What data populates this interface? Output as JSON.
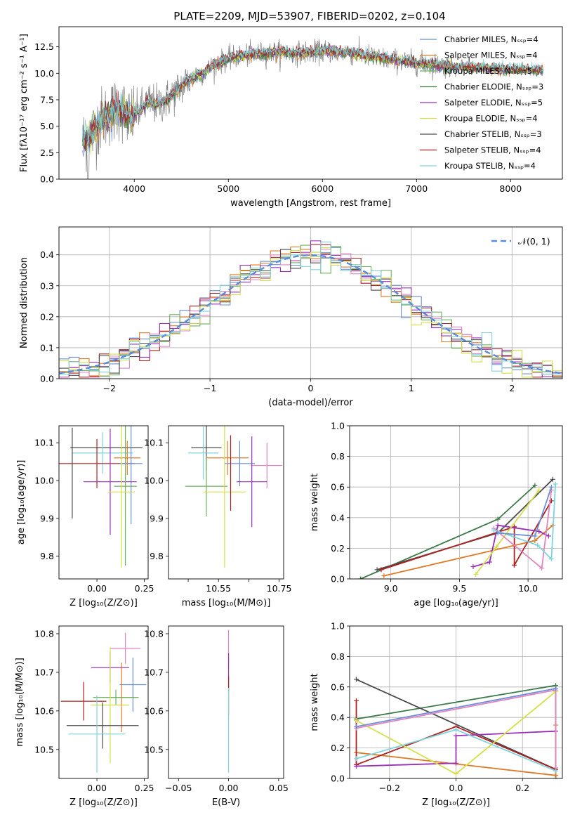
{
  "figure_title": "PLATE=2209, MJD=53907, FIBERID=0202, z=0.104",
  "colors": [
    "#6b8fd6",
    "#e07a28",
    "#6ab35a",
    "#a63d3d",
    "#9b30b8",
    "#e085c0",
    "#555555",
    "#d4e04a",
    "#7fd3dc",
    "#4b4b4b",
    "#2f8a3a",
    "#b02020"
  ],
  "chart_data": [
    {
      "id": "spectrum",
      "type": "line",
      "xlabel": "wavelength [Angstrom, rest frame]",
      "ylabel": "Flux [fλ10⁻¹⁷ erg cm⁻² s⁻¹ A⁻¹]",
      "xlim": [
        3200,
        8550
      ],
      "ylim": [
        0,
        14.4
      ],
      "xticks": [
        4000,
        5000,
        6000,
        7000,
        8000
      ],
      "yticks": [
        0.0,
        2.5,
        5.0,
        7.5,
        10.0,
        12.5
      ],
      "grid": false,
      "legend_position": "upper-right",
      "series": [
        {
          "name": "Chabrier MILES, Nₛₛₚ=4",
          "color": "#6b8fd6"
        },
        {
          "name": "Salpeter MILES, Nₛₛₚ=4",
          "color": "#e07a28"
        },
        {
          "name": "Kroupa MILES, Nₛₛₚ=5",
          "color": "#6ab35a"
        },
        {
          "name": "Chabrier ELODIE, Nₛₛₚ=3",
          "color": "#3c7a4a"
        },
        {
          "name": "Salpeter ELODIE, Nₛₛₚ=5",
          "color": "#9b30b8"
        },
        {
          "name": "Kroupa ELODIE, Nₛₛₚ=4",
          "color": "#d4e04a"
        },
        {
          "name": "Chabrier STELIB, Nₛₛₚ=3",
          "color": "#4b4b4b"
        },
        {
          "name": "Salpeter STELIB, Nₛₛₚ=4",
          "color": "#b02020"
        },
        {
          "name": "Kroupa STELIB, Nₛₛₚ=4",
          "color": "#7fd3dc"
        }
      ],
      "envelope": {
        "x": [
          3450,
          3550,
          3650,
          3750,
          3850,
          3950,
          4050,
          4150,
          4250,
          4350,
          4450,
          4550,
          4650,
          4750,
          4850,
          4950,
          5100,
          5300,
          5500,
          5700,
          5900,
          6100,
          6300,
          6500,
          6700,
          6900,
          7100,
          7300,
          7400
        ],
        "y": [
          3.6,
          4.3,
          5.6,
          6.3,
          6.8,
          5.8,
          6.4,
          7.3,
          7.0,
          7.5,
          8.3,
          9.2,
          9.7,
          10.1,
          10.8,
          11.2,
          11.6,
          11.8,
          12.0,
          11.9,
          12.0,
          12.1,
          11.9,
          11.6,
          11.3,
          11.1,
          10.9,
          10.7,
          10.6
        ]
      },
      "observed_x_range": [
        3450,
        7420
      ],
      "model_x_range": [
        3450,
        8350
      ]
    },
    {
      "id": "residual-histogram",
      "type": "histogram",
      "xlabel": "(data-model)/error",
      "ylabel": "Normed distribution",
      "xlim": [
        -2.5,
        2.5
      ],
      "ylim": [
        0,
        0.49
      ],
      "xticks": [
        -2,
        -1,
        0,
        1,
        2
      ],
      "yticks": [
        0.0,
        0.1,
        0.2,
        0.3,
        0.4
      ],
      "grid": true,
      "legend_position": "upper-right",
      "reference_curve": {
        "name": "𝒩(0, 1)",
        "style": "dashed",
        "color": "#5a8ad8"
      },
      "bin_width": 0.1
    },
    {
      "id": "age-vs-Z",
      "type": "errorbar",
      "xlabel": "Z [log₁₀(Z/Z⊙)]",
      "ylabel": "age [log₁₀(age/yr)]",
      "xlim": [
        -0.2,
        0.27
      ],
      "ylim": [
        9.74,
        10.145
      ],
      "xticks": [
        0.0,
        0.25
      ],
      "yticks": [
        9.8,
        9.9,
        10.0,
        10.1
      ],
      "points": [
        {
          "x": 0.05,
          "y": 10.087,
          "xerr": 0.19,
          "yerr": 0.0,
          "color": "#4b4b4b"
        },
        {
          "x": 0.03,
          "y": 10.073,
          "xerr": 0.16,
          "yerr": 0.055,
          "color": "#7fd3dc"
        },
        {
          "x": 0.16,
          "y": 10.06,
          "xerr": 0.07,
          "yerr": 0.045,
          "color": "#e07a28"
        },
        {
          "x": 0.0,
          "y": 10.045,
          "xerr": 0.2,
          "yerr": 0.065,
          "color": "#b02020"
        },
        {
          "x": 0.18,
          "y": 10.045,
          "xerr": 0.06,
          "yerr": 0.16,
          "color": "#6b8fd6"
        },
        {
          "x": 0.07,
          "y": 9.997,
          "xerr": 0.14,
          "yerr": 0.14,
          "color": "#9b30b8"
        },
        {
          "x": 0.15,
          "y": 9.985,
          "xerr": 0.06,
          "yerr": 0.21,
          "color": "#6ab35a"
        },
        {
          "x": 0.13,
          "y": 9.97,
          "xerr": 0.07,
          "yerr": 0.2,
          "color": "#d4e04a"
        },
        {
          "x": -0.13,
          "y": 10.02,
          "xerr": 0.0,
          "yerr": 0.12,
          "color": "#4b4b4b"
        }
      ]
    },
    {
      "id": "age-vs-mass",
      "type": "errorbar",
      "xlabel": "mass [log₁₀(M/M⊙)]",
      "xlim": [
        10.435,
        10.815
      ],
      "ylim": [
        9.74,
        10.145
      ],
      "xticks": [
        10.5,
        10.6,
        10.7,
        10.8
      ],
      "xtick_labels": [
        "",
        "10.55",
        "",
        "10.75"
      ],
      "yticks": [
        9.8,
        9.9,
        10.0,
        10.1
      ],
      "points": [
        {
          "x": 10.56,
          "y": 10.087,
          "xerr": 0.05,
          "yerr": 0.06,
          "color": "#4b4b4b"
        },
        {
          "x": 10.55,
          "y": 10.073,
          "xerr": 0.05,
          "yerr": 0.07,
          "color": "#7fd3dc"
        },
        {
          "x": 10.63,
          "y": 10.06,
          "xerr": 0.07,
          "yerr": 0.045,
          "color": "#e07a28"
        },
        {
          "x": 10.67,
          "y": 10.045,
          "xerr": 0.05,
          "yerr": 0.06,
          "color": "#6b8fd6"
        },
        {
          "x": 10.76,
          "y": 10.04,
          "xerr": 0.05,
          "yerr": 0.06,
          "color": "#e085c0"
        },
        {
          "x": 10.71,
          "y": 9.997,
          "xerr": 0.05,
          "yerr": 0.12,
          "color": "#9b30b8"
        },
        {
          "x": 10.56,
          "y": 9.985,
          "xerr": 0.07,
          "yerr": 0.08,
          "color": "#6ab35a"
        },
        {
          "x": 10.62,
          "y": 9.97,
          "xerr": 0.07,
          "yerr": 0.2,
          "color": "#d4e04a"
        },
        {
          "x": 10.64,
          "y": 10.02,
          "xerr": 0.0,
          "yerr": 0.1,
          "color": "#b02020"
        }
      ]
    },
    {
      "id": "weight-vs-age",
      "type": "line",
      "xlabel": "age [log₁₀(age/yr)]",
      "ylabel": "mass weight",
      "xlim": [
        8.7,
        10.25
      ],
      "ylim": [
        0,
        1.0
      ],
      "xticks": [
        9.0,
        9.5,
        10.0
      ],
      "yticks": [
        0.0,
        0.2,
        0.4,
        0.6,
        0.8,
        1.0
      ],
      "grid": true,
      "series": [
        {
          "color": "#3c7a4a",
          "x": [
            8.78,
            9.78,
            10.05
          ],
          "y": [
            0.0,
            0.39,
            0.61
          ]
        },
        {
          "color": "#4b4b4b",
          "x": [
            8.9,
            9.78,
            10.18
          ],
          "y": [
            0.06,
            0.3,
            0.65
          ]
        },
        {
          "color": "#e07a28",
          "x": [
            8.95,
            10.05,
            10.18
          ],
          "y": [
            0.02,
            0.25,
            0.35
          ]
        },
        {
          "color": "#b02020",
          "x": [
            8.93,
            9.9,
            9.9,
            10.17
          ],
          "y": [
            0.06,
            0.34,
            0.09,
            0.51
          ]
        },
        {
          "color": "#9b30b8",
          "x": [
            9.6,
            9.72,
            9.78,
            10.08,
            10.15
          ],
          "y": [
            0.08,
            0.11,
            0.35,
            0.31,
            0.28
          ]
        },
        {
          "color": "#d4e04a",
          "x": [
            9.62,
            9.77,
            10.08
          ],
          "y": [
            0.03,
            0.21,
            0.58
          ]
        },
        {
          "color": "#e085c0",
          "x": [
            9.75,
            10.1,
            10.17
          ],
          "y": [
            0.33,
            0.07,
            0.58
          ]
        },
        {
          "color": "#7fd3dc",
          "x": [
            9.75,
            10.07,
            10.17,
            10.2
          ],
          "y": [
            0.32,
            0.22,
            0.13,
            0.62
          ]
        },
        {
          "color": "#6b8fd6",
          "x": [
            9.78,
            10.05,
            10.17
          ],
          "y": [
            0.3,
            0.28,
            0.6
          ]
        }
      ]
    },
    {
      "id": "mass-vs-Z",
      "type": "errorbar",
      "xlabel": "Z [log₁₀(Z/Z⊙)]",
      "ylabel": "mass [log₁₀(M/M⊙)]",
      "xlim": [
        -0.2,
        0.27
      ],
      "ylim": [
        10.425,
        10.82
      ],
      "xticks": [
        0.0,
        0.25
      ],
      "yticks": [
        10.5,
        10.6,
        10.7,
        10.8
      ],
      "points": [
        {
          "x": 0.15,
          "y": 10.762,
          "xerr": 0.08,
          "yerr": 0.04,
          "color": "#e085c0"
        },
        {
          "x": 0.07,
          "y": 10.712,
          "xerr": 0.1,
          "yerr": 0.04,
          "color": "#9b30b8"
        },
        {
          "x": 0.19,
          "y": 10.668,
          "xerr": 0.07,
          "yerr": 0.07,
          "color": "#6b8fd6"
        },
        {
          "x": 0.13,
          "y": 10.635,
          "xerr": 0.08,
          "yerr": 0.09,
          "color": "#e07a28"
        },
        {
          "x": 0.1,
          "y": 10.635,
          "xerr": 0.12,
          "yerr": 0.02,
          "color": "#6ab35a"
        },
        {
          "x": -0.07,
          "y": 10.625,
          "xerr": 0.12,
          "yerr": 0.05,
          "color": "#b02020"
        },
        {
          "x": 0.07,
          "y": 10.615,
          "xerr": 0.1,
          "yerr": 0.15,
          "color": "#d4e04a"
        },
        {
          "x": 0.03,
          "y": 10.562,
          "xerr": 0.19,
          "yerr": 0.06,
          "color": "#4b4b4b"
        },
        {
          "x": 0.0,
          "y": 10.54,
          "xerr": 0.15,
          "yerr": 0.1,
          "color": "#7fd3dc"
        }
      ]
    },
    {
      "id": "mass-vs-EBV",
      "type": "errorbar",
      "xlabel": "E(B-V)",
      "xlim": [
        -0.06,
        0.055
      ],
      "ylim": [
        10.425,
        10.82
      ],
      "xticks": [
        -0.05,
        0.0,
        0.05
      ],
      "yticks": [
        10.5,
        10.6,
        10.7,
        10.8
      ],
      "points": [
        {
          "x": 0.0,
          "y": 10.76,
          "xerr": 0.0,
          "yerr": 0.05,
          "color": "#e085c0"
        },
        {
          "x": 0.0,
          "y": 10.7,
          "xerr": 0.0,
          "yerr": 0.05,
          "color": "#9b30b8"
        },
        {
          "x": 0.0,
          "y": 10.64,
          "xerr": 0.0,
          "yerr": 0.05,
          "color": "#b02020"
        },
        {
          "x": 0.0,
          "y": 10.55,
          "xerr": 0.0,
          "yerr": 0.11,
          "color": "#7fd3dc"
        }
      ]
    },
    {
      "id": "weight-vs-Z",
      "type": "line",
      "xlabel": "Z [log₁₀(Z/Z⊙)]",
      "ylabel": "mass weight",
      "xlim": [
        -0.32,
        0.32
      ],
      "ylim": [
        0,
        1.0
      ],
      "xticks": [
        -0.2,
        0.0,
        0.2
      ],
      "yticks": [
        0.0,
        0.2,
        0.4,
        0.6,
        0.8,
        1.0
      ],
      "grid": true,
      "series": [
        {
          "color": "#3c7a4a",
          "x": [
            -0.3,
            0.3,
            0.3
          ],
          "y": [
            0.39,
            0.61,
            0.0
          ]
        },
        {
          "color": "#4b4b4b",
          "x": [
            -0.3,
            0.3
          ],
          "y": [
            0.65,
            0.06
          ]
        },
        {
          "color": "#e07a28",
          "x": [
            -0.3,
            0.3,
            0.3
          ],
          "y": [
            0.17,
            0.02,
            0.35
          ]
        },
        {
          "color": "#b02020",
          "x": [
            -0.3,
            -0.3,
            0.0,
            0.3
          ],
          "y": [
            0.51,
            0.09,
            0.34,
            0.06
          ]
        },
        {
          "color": "#9b30b8",
          "x": [
            -0.3,
            0.0,
            0.0,
            0.3
          ],
          "y": [
            0.08,
            0.1,
            0.28,
            0.31
          ]
        },
        {
          "color": "#d4e04a",
          "x": [
            -0.3,
            0.0,
            0.3
          ],
          "y": [
            0.38,
            0.03,
            0.57
          ]
        },
        {
          "color": "#e085c0",
          "x": [
            -0.3,
            0.3,
            0.3
          ],
          "y": [
            0.33,
            0.58,
            0.07
          ]
        },
        {
          "color": "#7fd3dc",
          "x": [
            -0.3,
            0.0,
            0.3
          ],
          "y": [
            0.13,
            0.32,
            0.05
          ]
        },
        {
          "color": "#6b8fd6",
          "x": [
            -0.3,
            0.3
          ],
          "y": [
            0.34,
            0.59
          ]
        }
      ]
    }
  ]
}
